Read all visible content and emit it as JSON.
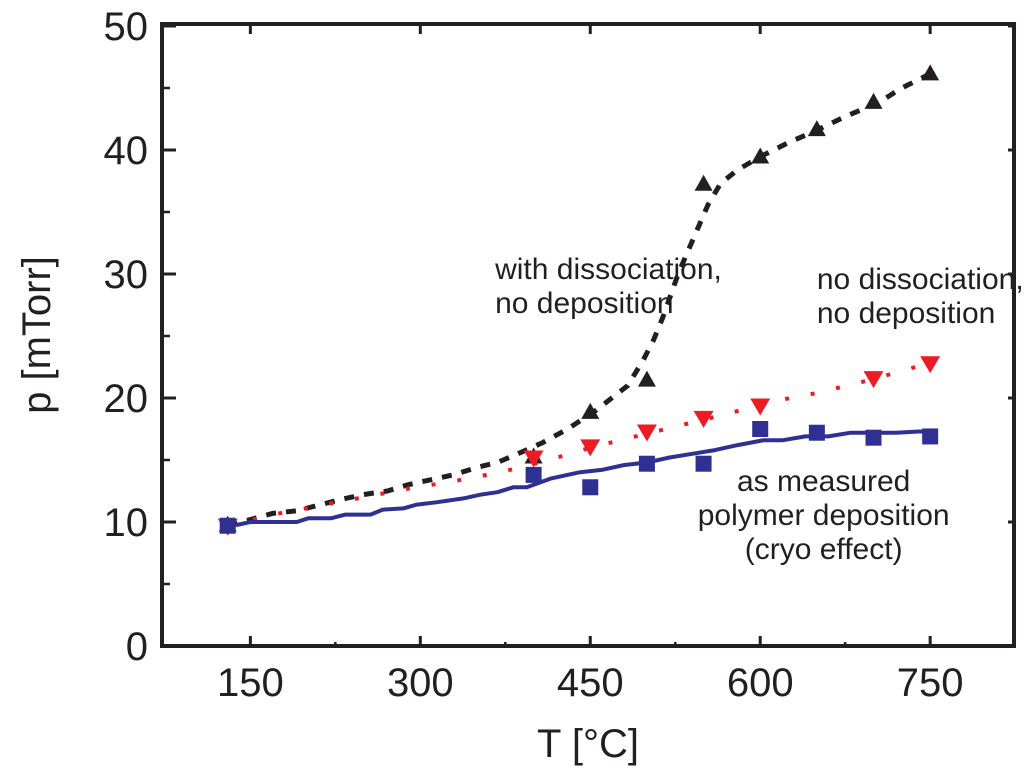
{
  "chart_data": {
    "type": "line",
    "title": "",
    "xlabel": "T [°C]",
    "ylabel": "p [mTorr]",
    "xlim": [
      72,
      824
    ],
    "ylim": [
      0,
      50
    ],
    "grid": false,
    "legend": "none",
    "x_ticks": [
      150,
      300,
      450,
      600,
      750
    ],
    "x_minor_ticks": [
      225,
      375,
      525,
      675
    ],
    "y_ticks": [
      0,
      10,
      20,
      30,
      40,
      50
    ],
    "y_minor_ticks": [
      5,
      15,
      25,
      35,
      45
    ],
    "series": [
      {
        "name": "with dissociation, no deposition (simulation)",
        "kind": "line",
        "style": "dashed",
        "color": "#231f20",
        "x": [
          130,
          150,
          170,
          191,
          212,
          229,
          249,
          271,
          289,
          309,
          329,
          350,
          368,
          386,
          408,
          430,
          455,
          483,
          497,
          506,
          514,
          521,
          528,
          536,
          545,
          554,
          565,
          580,
          601,
          625,
          650,
          675,
          704,
          725,
          749
        ],
        "y": [
          9.7,
          10.2,
          10.7,
          10.9,
          11.4,
          11.8,
          12.2,
          12.5,
          13.0,
          13.4,
          13.8,
          14.4,
          14.8,
          15.5,
          16.4,
          17.5,
          19.0,
          21.0,
          23.1,
          24.7,
          26.5,
          28.3,
          30.1,
          31.8,
          33.7,
          35.6,
          37.3,
          38.4,
          39.5,
          40.6,
          41.6,
          42.7,
          43.8,
          45.0,
          46.1
        ]
      },
      {
        "name": "with dissociation, no deposition (points)",
        "kind": "markers",
        "marker": "triangle-up",
        "color": "#231f20",
        "x": [
          130,
          400,
          450,
          500,
          550,
          600,
          650,
          700,
          750
        ],
        "y": [
          9.7,
          15.2,
          18.8,
          21.4,
          37.2,
          39.4,
          41.6,
          43.8,
          46.1
        ]
      },
      {
        "name": "no dissociation, no deposition (simulation)",
        "kind": "line",
        "style": "dotted",
        "color": "#ed1c24",
        "x": [
          130,
          170,
          210,
          250,
          290,
          330,
          370,
          410,
          450,
          490,
          530,
          570,
          610,
          650,
          690,
          730,
          750
        ],
        "y": [
          9.7,
          10.6,
          11.3,
          12.0,
          12.7,
          13.3,
          14.0,
          14.9,
          16.0,
          16.9,
          17.8,
          18.7,
          19.7,
          20.4,
          21.3,
          22.3,
          22.9
        ]
      },
      {
        "name": "no dissociation, no deposition (points)",
        "kind": "markers",
        "marker": "triangle-down",
        "color": "#ed1c24",
        "x": [
          130,
          400,
          450,
          500,
          550,
          600,
          700,
          750
        ],
        "y": [
          9.7,
          15.2,
          16.1,
          17.3,
          18.4,
          19.4,
          21.6,
          22.8
        ]
      },
      {
        "name": "as measured polymer deposition (cryo effect) (simulation)",
        "kind": "line",
        "style": "solid",
        "color": "#2e3192",
        "x": [
          130,
          140,
          150,
          191,
          201,
          221,
          234,
          256,
          267,
          285,
          297,
          315,
          338,
          353,
          368,
          382,
          394,
          415,
          440,
          460,
          480,
          500,
          520,
          540,
          560,
          580,
          603,
          620,
          640,
          660,
          680,
          700,
          720,
          740,
          750
        ],
        "y": [
          9.7,
          9.8,
          10.0,
          10.0,
          10.3,
          10.3,
          10.6,
          10.6,
          11.0,
          11.1,
          11.4,
          11.6,
          11.9,
          12.2,
          12.4,
          12.8,
          12.8,
          13.5,
          14.0,
          14.2,
          14.6,
          14.8,
          15.2,
          15.5,
          15.8,
          16.2,
          16.6,
          16.6,
          16.9,
          16.9,
          17.2,
          17.2,
          17.2,
          17.3,
          17.3
        ]
      },
      {
        "name": "as measured polymer deposition (cryo effect) (points)",
        "kind": "markers",
        "marker": "square",
        "color": "#2e3192",
        "x": [
          130,
          400,
          450,
          500,
          550,
          600,
          650,
          700,
          750
        ],
        "y": [
          9.7,
          13.8,
          12.8,
          14.7,
          14.7,
          17.5,
          17.2,
          16.8,
          16.9
        ]
      }
    ],
    "annotations": [
      {
        "id": "with-dissociation",
        "lines": [
          "with dissociation,",
          "no deposition"
        ],
        "x": 366,
        "y": 29.6,
        "align": "left"
      },
      {
        "id": "no-dissociation",
        "lines": [
          "no dissociation,",
          "no deposition"
        ],
        "x": 650,
        "y": 28.8,
        "align": "left"
      },
      {
        "id": "as-measured",
        "lines": [
          "as measured",
          "polymer deposition",
          "(cryo effect)"
        ],
        "x": 656,
        "y": 12.5,
        "align": "center"
      }
    ]
  }
}
